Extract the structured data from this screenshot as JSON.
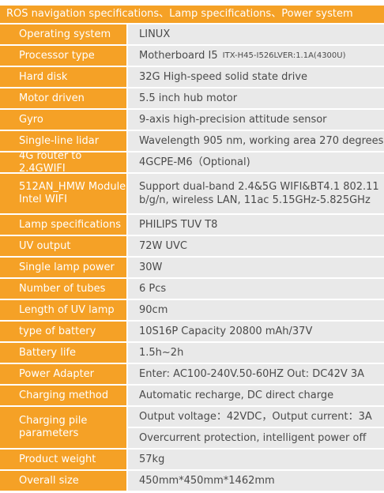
{
  "title": "ROS navigation specifications、Lamp specifications、Power system",
  "rows": [
    {
      "label": "Operating system",
      "values": [
        "LINUX"
      ]
    },
    {
      "label": "Processor type",
      "values": [
        "Motherboard I5"
      ],
      "extra": "ITX-H45-I526LVER:1.1A(4300U)"
    },
    {
      "label": "Hard disk",
      "values": [
        "32G High-speed solid state drive"
      ]
    },
    {
      "label": "Motor driven",
      "values": [
        "5.5 inch hub motor"
      ]
    },
    {
      "label": "Gyro",
      "values": [
        "9-axis high-precision attitude sensor"
      ]
    },
    {
      "label": "Single-line lidar",
      "values": [
        "Wavelength 905 nm, working area 270 degrees"
      ]
    },
    {
      "label": "4G router to 2.4GWIFI",
      "values": [
        "4GCPE-M6（Optional)"
      ]
    },
    {
      "label": "512AN_HMW Module Intel WIFI",
      "values": [
        "Support dual-band 2.4&5G WIFI&BT4.1 802.11 b/g/n, wireless LAN, 11ac 5.15GHz-5.825GHz"
      ]
    },
    {
      "label": "Lamp specifications",
      "values": [
        "PHILIPS TUV T8"
      ]
    },
    {
      "label": "UV output",
      "values": [
        "72W UVC"
      ]
    },
    {
      "label": "Single lamp power",
      "values": [
        "30W"
      ]
    },
    {
      "label": "Number of tubes",
      "values": [
        "6 Pcs"
      ]
    },
    {
      "label": "Length of UV lamp",
      "values": [
        "90cm"
      ]
    },
    {
      "label": "type of battery",
      "values": [
        "10S16P Capacity 20800 mAh/37V"
      ]
    },
    {
      "label": "Battery life",
      "values": [
        "1.5h~2h"
      ]
    },
    {
      "label": "Power Adapter",
      "values": [
        "Enter: AC100-240V.50-60HZ   Out: DC42V  3A"
      ]
    },
    {
      "label": "Charging method",
      "values": [
        "Automatic recharge, DC direct charge"
      ]
    },
    {
      "label": "Charging pile parameters",
      "values": [
        "Output voltage：42VDC，Output current：3A",
        "Overcurrent protection, intelligent power off"
      ]
    },
    {
      "label": "Product weight",
      "values": [
        "57kg"
      ]
    },
    {
      "label": "Overall size",
      "values": [
        "450mm*450mm*1462mm"
      ]
    }
  ]
}
